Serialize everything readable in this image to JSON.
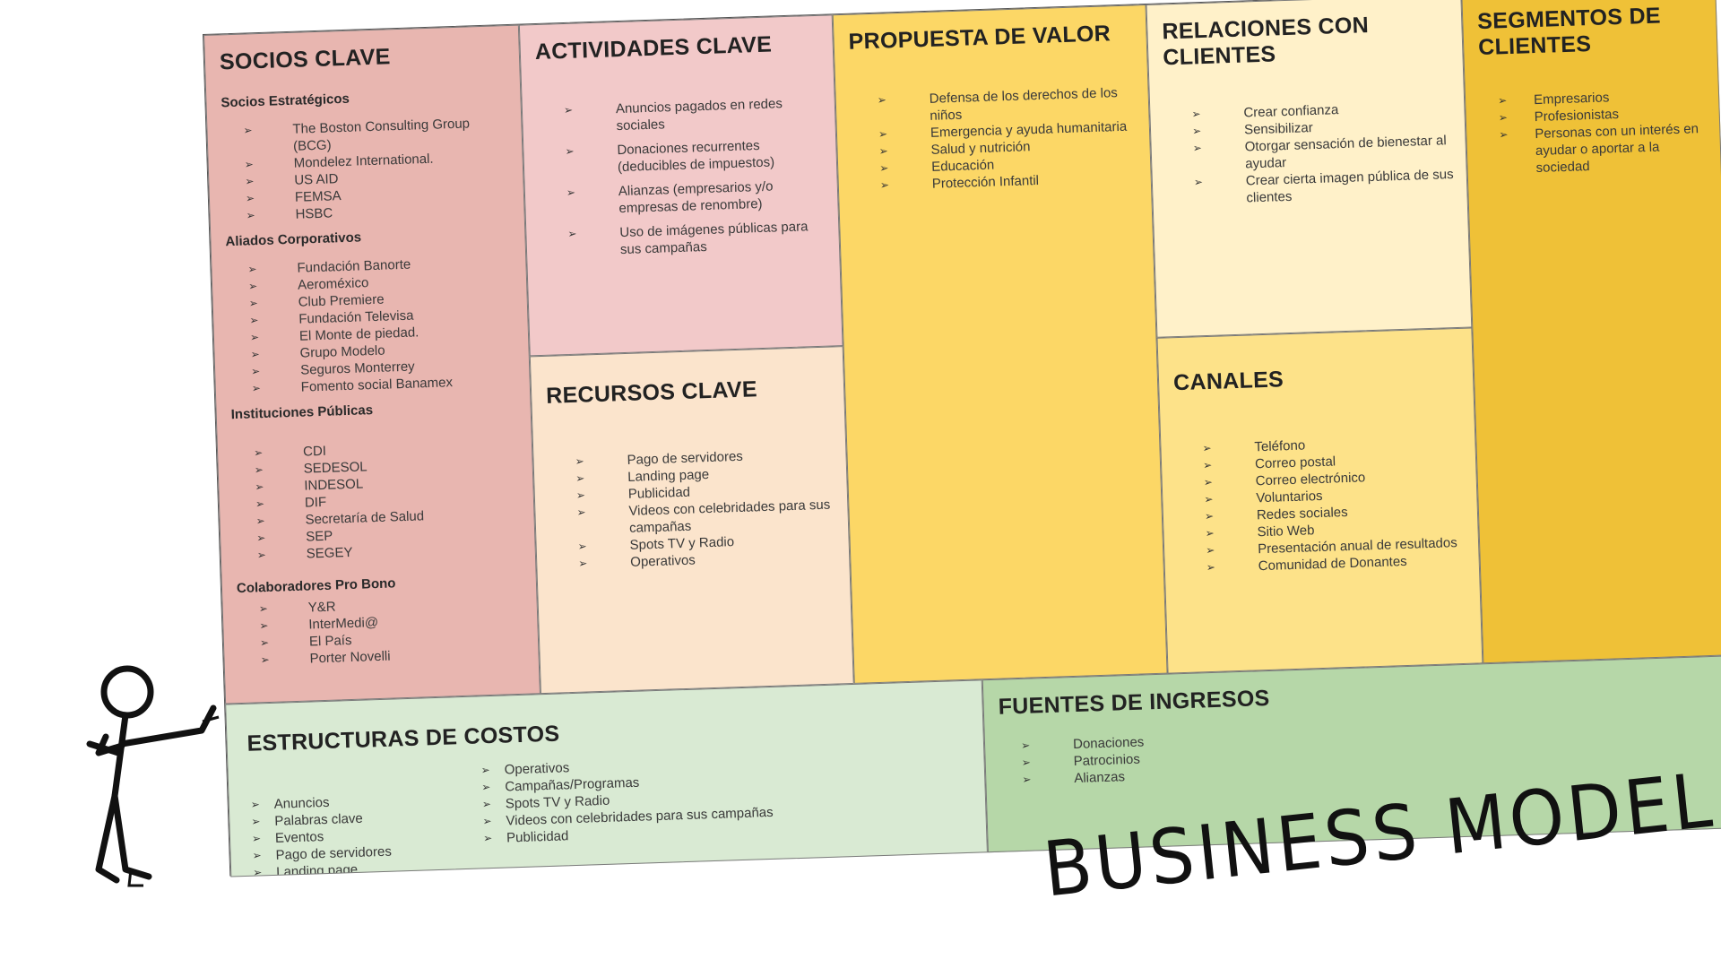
{
  "title": "BUSINESS MODEL",
  "socios_clave": {
    "heading": "SOCIOS CLAVE",
    "groups": [
      {
        "label": "Socios Estratégicos",
        "items": [
          "The Boston Consulting Group (BCG)",
          "Mondelez International.",
          "US AID",
          "FEMSA",
          "HSBC"
        ]
      },
      {
        "label": "Aliados Corporativos",
        "items": [
          "Fundación Banorte",
          "Aeroméxico",
          "Club Premiere",
          "Fundación Televisa",
          "El Monte de piedad.",
          "Grupo Modelo",
          "Seguros Monterrey",
          "Fomento social Banamex"
        ]
      },
      {
        "label": "Instituciones Públicas",
        "items": [
          "CDI",
          "SEDESOL",
          "INDESOL",
          "DIF",
          "Secretaría de Salud",
          "SEP",
          "SEGEY"
        ]
      },
      {
        "label": "Colaboradores Pro Bono",
        "items": [
          "Y&R",
          "InterMedi@",
          "El País",
          "Porter Novelli"
        ]
      }
    ]
  },
  "actividades_clave": {
    "heading": "ACTIVIDADES CLAVE",
    "items": [
      "Anuncios pagados en redes sociales",
      "Donaciones recurrentes (deducibles de impuestos)",
      "Alianzas (empresarios y/o empresas de renombre)",
      "Uso de imágenes públicas para sus campañas"
    ]
  },
  "recursos_clave": {
    "heading": "RECURSOS CLAVE",
    "items": [
      "Pago de servidores",
      "Landing page",
      "Publicidad",
      "Videos con celebridades para sus campañas",
      "Spots TV y Radio",
      "Operativos"
    ]
  },
  "propuesta_valor": {
    "heading": "PROPUESTA DE VALOR",
    "items": [
      "Defensa de los derechos de los niños",
      "Emergencia y ayuda humanitaria",
      "Salud y nutrición",
      "Educación",
      "Protección Infantil"
    ]
  },
  "relaciones_clientes": {
    "heading": "RELACIONES CON CLIENTES",
    "items": [
      "Crear confianza",
      "Sensibilizar",
      "Otorgar sensación de bienestar al ayudar",
      "Crear cierta imagen pública de sus clientes"
    ]
  },
  "canales": {
    "heading": "CANALES",
    "items": [
      "Teléfono",
      "Correo postal",
      "Correo electrónico",
      "Voluntarios",
      "Redes sociales",
      "Sitio Web",
      "Presentación anual de resultados",
      "Comunidad de Donantes"
    ]
  },
  "segmentos_clientes": {
    "heading": "SEGMENTOS DE CLIENTES",
    "items": [
      "Empresarios",
      "Profesionistas",
      "Personas con un interés en ayudar o aportar a la sociedad"
    ]
  },
  "estructuras_costos": {
    "heading": "ESTRUCTURAS DE COSTOS",
    "col_a": [
      "Anuncios",
      "Palabras clave",
      "Eventos",
      "Pago de servidores",
      "Landing page"
    ],
    "col_b": [
      "Operativos",
      "Campañas/Programas",
      "Spots TV y Radio",
      "Videos con celebridades para sus campañas",
      "Publicidad"
    ]
  },
  "fuentes_ingresos": {
    "heading": "FUENTES DE INGRESOS",
    "items": [
      "Donaciones",
      "Patrocinios",
      "Alianzas"
    ]
  },
  "colors": {
    "socios": "#e8b6b0",
    "actividades": "#f2c9c9",
    "recursos": "#fbe4cc",
    "propuesta": "#fcd766",
    "relaciones": "#fff1c9",
    "canales": "#fde289",
    "segmentos": "#efc137",
    "costos": "#d9ead3",
    "ingresos": "#b6d7a8"
  },
  "icons": {
    "bullet": "arrowhead-bullet-icon",
    "figure": "stick-figure-icon"
  }
}
